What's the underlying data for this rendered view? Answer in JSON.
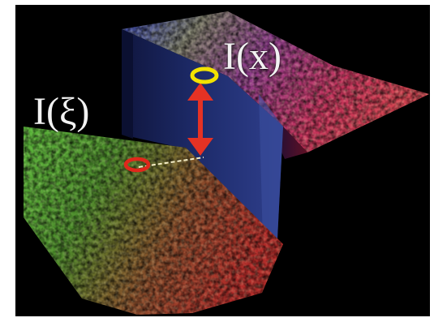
{
  "labels": {
    "upper_intensity": "I(x)",
    "lower_intensity": "I(ξ)"
  },
  "colors": {
    "background": "#000000",
    "upper_marker": "#f2e200",
    "lower_marker": "#e0271b",
    "arrow": "#e53224",
    "connector": "#f6efc8"
  }
}
